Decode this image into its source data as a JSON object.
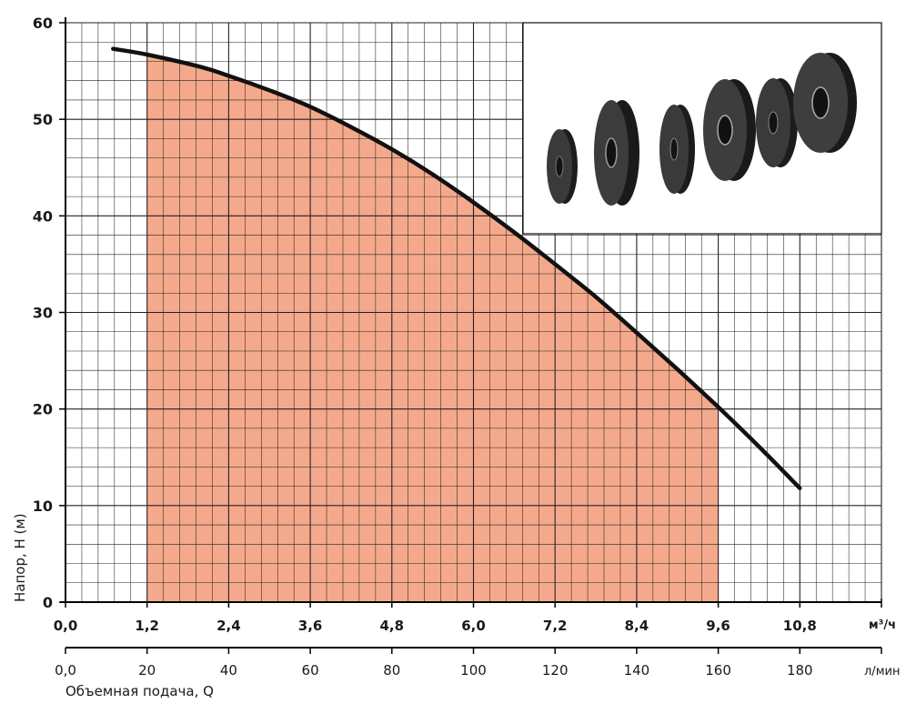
{
  "chart_data": {
    "type": "line",
    "xlabel": "Объемная подача, Q",
    "ylabel": "Напор, H (м)",
    "x_unit_primary": "м³/ч",
    "x_unit_secondary": "л/мин",
    "xlim": [
      0,
      12
    ],
    "ylim": [
      0,
      60
    ],
    "x_ticks_primary": [
      "0,0",
      "1,2",
      "2,4",
      "3,6",
      "4,8",
      "6,0",
      "7,2",
      "8,4",
      "9,6",
      "10,8"
    ],
    "x_tick_values_primary": [
      0,
      1.2,
      2.4,
      3.6,
      4.8,
      6.0,
      7.2,
      8.4,
      9.6,
      10.8
    ],
    "x_ticks_secondary": [
      "0,0",
      "20",
      "40",
      "60",
      "80",
      "100",
      "120",
      "140",
      "160",
      "180"
    ],
    "y_ticks": [
      "0",
      "10",
      "20",
      "30",
      "40",
      "50",
      "60"
    ],
    "y_tick_values": [
      0,
      10,
      20,
      30,
      40,
      50,
      60
    ],
    "grid": true,
    "series": [
      {
        "x": [
          0.7,
          1.2,
          2.0,
          2.4,
          3.0,
          3.6,
          4.2,
          4.8,
          5.4,
          6.0,
          6.6,
          7.2,
          7.8,
          8.4,
          9.0,
          9.6,
          10.2,
          10.8
        ],
        "y": [
          57.3,
          56.7,
          55.4,
          54.5,
          53.0,
          51.3,
          49.2,
          46.9,
          44.3,
          41.4,
          38.3,
          35.0,
          31.6,
          27.9,
          24.1,
          20.2,
          16.1,
          11.8
        ]
      }
    ],
    "shaded_range": {
      "x": [
        1.2,
        9.6
      ]
    },
    "colors": {
      "curve": "#111111",
      "fill": "#f5a98c",
      "grid": "#222222",
      "axis": "#000000"
    },
    "inset": "impeller-stack-photo"
  }
}
